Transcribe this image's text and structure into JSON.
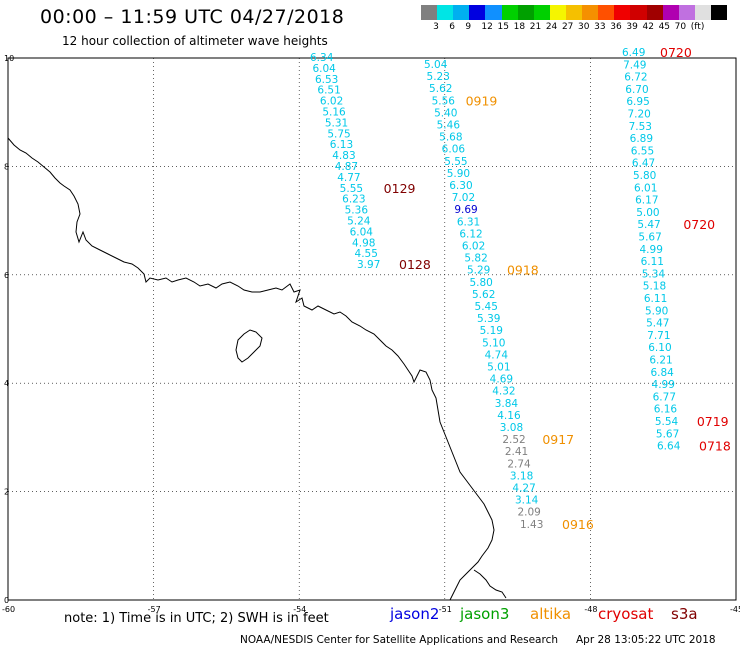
{
  "header": {
    "title": "00:00 – 11:59 UTC 04/27/2018",
    "subtitle": "12 hour collection of altimeter wave heights"
  },
  "colorbar": {
    "colors": [
      "#808080",
      "#00e5e5",
      "#00b0f0",
      "#0000e0",
      "#1090ff",
      "#00d000",
      "#00a000",
      "#00d000",
      "#f5f500",
      "#f5c000",
      "#f59000",
      "#ff5000",
      "#f00000",
      "#d00000",
      "#a00000",
      "#b000b0",
      "#c070e0",
      "#e0e0e0",
      "#000000"
    ],
    "labels": [
      "3",
      "6",
      "9",
      "12",
      "15",
      "18",
      "21",
      "24",
      "27",
      "30",
      "33",
      "36",
      "39",
      "42",
      "45",
      "70",
      "(ft)"
    ]
  },
  "axes": {
    "x_ticks": [
      "-60",
      "-57",
      "-54",
      "-51",
      "-48",
      "-45"
    ],
    "y_ticks": [
      "10",
      "8",
      "6",
      "4",
      "2",
      "0"
    ],
    "xlim": [
      -60,
      -45
    ],
    "ylim": [
      0,
      10
    ]
  },
  "tracks": [
    {
      "name": "track-1",
      "values": [
        "6.34",
        "6.04",
        "6.53",
        "6.51",
        "6.02",
        "5.16",
        "5.31",
        "5.75",
        "6.13",
        "4.83",
        "4.87",
        "4.77",
        "5.55",
        "6.23",
        "5.36",
        "5.24",
        "6.04",
        "4.98",
        "4.55",
        "3.97"
      ],
      "labels": [
        {
          "text": "0129",
          "color": "#800000"
        },
        {
          "text": "0128",
          "color": "#800000"
        }
      ]
    },
    {
      "name": "track-2",
      "values": [
        "5.04",
        "5.23",
        "5.62",
        "5.56",
        "5.40",
        "5.46",
        "5.68",
        "6.06",
        "5.55",
        "5.90",
        "6.30",
        "7.02",
        "9.69",
        "6.31",
        "6.12",
        "6.02",
        "5.82",
        "5.29",
        "5.80",
        "5.62",
        "5.45",
        "5.39",
        "5.19",
        "5.10",
        "4.74",
        "5.01",
        "4.69",
        "4.32",
        "3.84",
        "4.16",
        "3.08",
        "2.52",
        "2.41",
        "2.74",
        "3.18",
        "4.27",
        "3.14",
        "2.09",
        "1.43"
      ],
      "labels": [
        {
          "text": "0919",
          "color": "#f09000"
        },
        {
          "text": "0918",
          "color": "#f09000"
        },
        {
          "text": "0917",
          "color": "#f09000"
        },
        {
          "text": "0916",
          "color": "#f09000"
        }
      ]
    },
    {
      "name": "track-3",
      "values": [
        "6.49",
        "7.49",
        "6.72",
        "6.70",
        "6.95",
        "7.20",
        "7.53",
        "6.89",
        "6.55",
        "6.47",
        "5.80",
        "6.01",
        "6.17",
        "5.00",
        "5.47",
        "5.67",
        "4.99",
        "6.11",
        "5.34",
        "5.18",
        "6.11",
        "5.90",
        "5.47",
        "7.71",
        "6.10",
        "6.21",
        "6.84",
        "4.99",
        "6.77",
        "6.16",
        "5.54",
        "5.67",
        "6.64"
      ],
      "labels": [
        {
          "text": "0720",
          "color": "#e00000"
        },
        {
          "text": "0720",
          "color": "#e00000"
        },
        {
          "text": "0719",
          "color": "#e00000"
        },
        {
          "text": "0718",
          "color": "#e00000"
        }
      ]
    }
  ],
  "footer": {
    "note": "note:  1) Time is in UTC;  2) SWH is in feet",
    "legend": [
      {
        "text": "jason2",
        "color": "#0000e0"
      },
      {
        "text": "jason3",
        "color": "#00a000"
      },
      {
        "text": "altika",
        "color": "#f09000"
      },
      {
        "text": "cryosat",
        "color": "#e00000"
      },
      {
        "text": "s3a",
        "color": "#800000"
      }
    ],
    "credit": "NOAA/NESDIS Center for Satellite Applications and Research",
    "timestamp": "Apr 28 13:05:22 UTC 2018"
  }
}
